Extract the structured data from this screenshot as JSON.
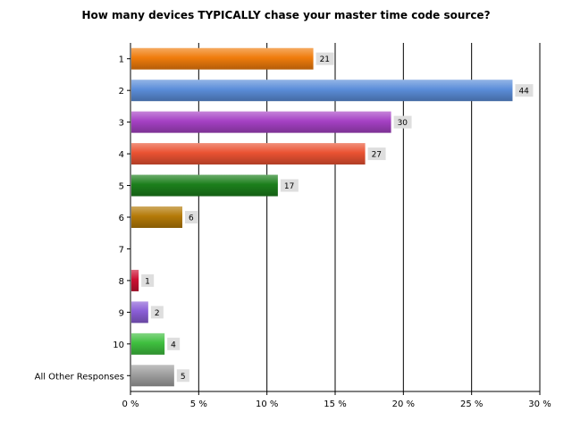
{
  "chart_data": {
    "type": "bar",
    "orientation": "horizontal",
    "title": "How many devices TYPICALLY chase your master time code source?",
    "xlabel": "",
    "ylabel": "",
    "xlim": [
      0,
      30
    ],
    "x_ticks": [
      0,
      5,
      10,
      15,
      20,
      25,
      30
    ],
    "x_tick_labels": [
      "0 %",
      "5 %",
      "10 %",
      "15 %",
      "20 %",
      "25 %",
      "30 %"
    ],
    "grid": true,
    "legend": "none",
    "categories": [
      "1",
      "2",
      "3",
      "4",
      "5",
      "6",
      "7",
      "8",
      "9",
      "10",
      "All Other Responses"
    ],
    "percent_values": [
      13.4,
      28.0,
      19.1,
      17.2,
      10.8,
      3.8,
      0,
      0.6,
      1.3,
      2.5,
      3.2
    ],
    "count_labels": [
      "21",
      "44",
      "30",
      "27",
      "17",
      "6",
      "",
      "1",
      "2",
      "4",
      "5"
    ],
    "colors": [
      "#f07c0c",
      "#5b8dd9",
      "#a541c4",
      "#ea5232",
      "#1c7f1c",
      "#b47a08",
      "#888888",
      "#cc1133",
      "#8a5ed6",
      "#3fbf3f",
      "#9e9e9e"
    ]
  }
}
